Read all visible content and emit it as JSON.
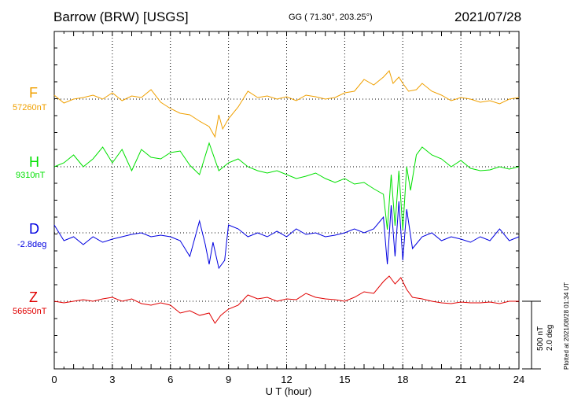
{
  "header": {
    "station": "Barrow (BRW)  [USGS]",
    "coords": "GG ( 71.30°, 203.25°)",
    "date": "2021/07/28"
  },
  "scale": {
    "field": "500 nT",
    "angle": "2.0 deg"
  },
  "plotted_note": "Plotted at 2021/08/28 01:34 UT",
  "chart_data": {
    "type": "line",
    "xlabel": "U T (hour)",
    "xlim": [
      0,
      24
    ],
    "xticks": [
      0,
      3,
      6,
      9,
      12,
      15,
      18,
      21,
      24
    ],
    "grid": true,
    "series": [
      {
        "name": "F",
        "baseline_label": "57260nT",
        "color": "#f0a000",
        "offset": 0,
        "points": [
          [
            0,
            5
          ],
          [
            0.5,
            -5
          ],
          [
            1,
            0
          ],
          [
            1.5,
            2
          ],
          [
            2,
            5
          ],
          [
            2.5,
            0
          ],
          [
            3,
            8
          ],
          [
            3.5,
            -2
          ],
          [
            4,
            4
          ],
          [
            4.5,
            2
          ],
          [
            5,
            12
          ],
          [
            5.5,
            -4
          ],
          [
            6,
            -12
          ],
          [
            6.5,
            -18
          ],
          [
            7,
            -20
          ],
          [
            7.5,
            -28
          ],
          [
            8,
            -35
          ],
          [
            8.3,
            -48
          ],
          [
            8.5,
            -20
          ],
          [
            8.7,
            -38
          ],
          [
            9,
            -25
          ],
          [
            9.5,
            -10
          ],
          [
            10,
            10
          ],
          [
            10.5,
            2
          ],
          [
            11,
            4
          ],
          [
            11.5,
            0
          ],
          [
            12,
            3
          ],
          [
            12.5,
            -2
          ],
          [
            13,
            5
          ],
          [
            13.5,
            3
          ],
          [
            14,
            0
          ],
          [
            14.5,
            2
          ],
          [
            15,
            8
          ],
          [
            15.5,
            10
          ],
          [
            16,
            25
          ],
          [
            16.5,
            18
          ],
          [
            17,
            28
          ],
          [
            17.3,
            36
          ],
          [
            17.5,
            20
          ],
          [
            17.8,
            28
          ],
          [
            18,
            20
          ],
          [
            18.3,
            10
          ],
          [
            18.7,
            12
          ],
          [
            19,
            20
          ],
          [
            19.5,
            10
          ],
          [
            20,
            5
          ],
          [
            20.5,
            -2
          ],
          [
            21,
            2
          ],
          [
            21.5,
            0
          ],
          [
            22,
            -4
          ],
          [
            22.5,
            -2
          ],
          [
            23,
            -6
          ],
          [
            23.5,
            0
          ],
          [
            24,
            2
          ]
        ]
      },
      {
        "name": "H",
        "baseline_label": "9310nT",
        "color": "#00e000",
        "offset": 0,
        "points": [
          [
            0,
            0
          ],
          [
            0.5,
            5
          ],
          [
            1,
            15
          ],
          [
            1.5,
            0
          ],
          [
            2,
            10
          ],
          [
            2.5,
            25
          ],
          [
            3,
            5
          ],
          [
            3.5,
            22
          ],
          [
            4,
            -5
          ],
          [
            4.5,
            22
          ],
          [
            5,
            12
          ],
          [
            5.5,
            10
          ],
          [
            6,
            18
          ],
          [
            6.5,
            20
          ],
          [
            7,
            2
          ],
          [
            7.5,
            -10
          ],
          [
            8,
            30
          ],
          [
            8.5,
            -5
          ],
          [
            9,
            5
          ],
          [
            9.5,
            10
          ],
          [
            10,
            0
          ],
          [
            10.5,
            -5
          ],
          [
            11,
            -8
          ],
          [
            11.5,
            -5
          ],
          [
            12,
            -10
          ],
          [
            12.5,
            -15
          ],
          [
            13,
            -12
          ],
          [
            13.5,
            -8
          ],
          [
            14,
            -15
          ],
          [
            14.5,
            -20
          ],
          [
            15,
            -15
          ],
          [
            15.5,
            -22
          ],
          [
            16,
            -20
          ],
          [
            16.5,
            -28
          ],
          [
            17,
            -35
          ],
          [
            17.2,
            -80
          ],
          [
            17.4,
            -10
          ],
          [
            17.6,
            -75
          ],
          [
            17.8,
            -5
          ],
          [
            18,
            -80
          ],
          [
            18.2,
            0
          ],
          [
            18.4,
            -30
          ],
          [
            18.7,
            15
          ],
          [
            19,
            25
          ],
          [
            19.5,
            15
          ],
          [
            20,
            10
          ],
          [
            20.5,
            0
          ],
          [
            21,
            8
          ],
          [
            21.5,
            -2
          ],
          [
            22,
            -5
          ],
          [
            22.5,
            -4
          ],
          [
            23,
            0
          ],
          [
            23.5,
            -3
          ],
          [
            24,
            0
          ]
        ]
      },
      {
        "name": "D",
        "baseline_label": "-2.8deg",
        "color": "#0000e0",
        "offset": 0,
        "points": [
          [
            0,
            10
          ],
          [
            0.5,
            -10
          ],
          [
            1,
            -5
          ],
          [
            1.5,
            -15
          ],
          [
            2,
            -5
          ],
          [
            2.5,
            -12
          ],
          [
            3,
            -8
          ],
          [
            3.5,
            -5
          ],
          [
            4,
            -2
          ],
          [
            4.5,
            0
          ],
          [
            5,
            -5
          ],
          [
            5.5,
            -3
          ],
          [
            6,
            -5
          ],
          [
            6.5,
            -10
          ],
          [
            7,
            -30
          ],
          [
            7.5,
            15
          ],
          [
            7.8,
            -15
          ],
          [
            8,
            -40
          ],
          [
            8.2,
            -12
          ],
          [
            8.5,
            -45
          ],
          [
            8.8,
            -35
          ],
          [
            9,
            10
          ],
          [
            9.5,
            5
          ],
          [
            10,
            -5
          ],
          [
            10.5,
            0
          ],
          [
            11,
            -5
          ],
          [
            11.5,
            2
          ],
          [
            12,
            -5
          ],
          [
            12.5,
            5
          ],
          [
            13,
            -2
          ],
          [
            13.5,
            0
          ],
          [
            14,
            -5
          ],
          [
            14.5,
            -3
          ],
          [
            15,
            0
          ],
          [
            15.5,
            5
          ],
          [
            16,
            0
          ],
          [
            16.5,
            5
          ],
          [
            17,
            20
          ],
          [
            17.2,
            -40
          ],
          [
            17.4,
            35
          ],
          [
            17.6,
            -30
          ],
          [
            17.8,
            40
          ],
          [
            18,
            -35
          ],
          [
            18.2,
            30
          ],
          [
            18.5,
            -20
          ],
          [
            19,
            -5
          ],
          [
            19.5,
            0
          ],
          [
            20,
            -10
          ],
          [
            20.5,
            -5
          ],
          [
            21,
            -8
          ],
          [
            21.5,
            -12
          ],
          [
            22,
            -5
          ],
          [
            22.5,
            -10
          ],
          [
            23,
            5
          ],
          [
            23.5,
            -10
          ],
          [
            24,
            -5
          ]
        ]
      },
      {
        "name": "Z",
        "baseline_label": "56650nT",
        "color": "#e00000",
        "offset": 0,
        "points": [
          [
            0,
            0
          ],
          [
            0.5,
            -2
          ],
          [
            1,
            0
          ],
          [
            1.5,
            2
          ],
          [
            2,
            0
          ],
          [
            2.5,
            3
          ],
          [
            3,
            5
          ],
          [
            3.5,
            0
          ],
          [
            4,
            3
          ],
          [
            4.5,
            -3
          ],
          [
            5,
            -5
          ],
          [
            5.5,
            -2
          ],
          [
            6,
            -5
          ],
          [
            6.5,
            -15
          ],
          [
            7,
            -12
          ],
          [
            7.5,
            -18
          ],
          [
            8,
            -15
          ],
          [
            8.3,
            -28
          ],
          [
            8.6,
            -18
          ],
          [
            9,
            -10
          ],
          [
            9.5,
            -5
          ],
          [
            10,
            8
          ],
          [
            10.5,
            3
          ],
          [
            11,
            5
          ],
          [
            11.5,
            0
          ],
          [
            12,
            3
          ],
          [
            12.5,
            2
          ],
          [
            13,
            10
          ],
          [
            13.5,
            5
          ],
          [
            14,
            3
          ],
          [
            14.5,
            2
          ],
          [
            15,
            0
          ],
          [
            15.5,
            5
          ],
          [
            16,
            12
          ],
          [
            16.5,
            10
          ],
          [
            17,
            25
          ],
          [
            17.3,
            32
          ],
          [
            17.6,
            22
          ],
          [
            17.9,
            30
          ],
          [
            18.2,
            15
          ],
          [
            18.5,
            5
          ],
          [
            19,
            3
          ],
          [
            19.5,
            0
          ],
          [
            20,
            -2
          ],
          [
            20.5,
            -3
          ],
          [
            21,
            -1
          ],
          [
            21.5,
            -2
          ],
          [
            22,
            -2
          ],
          [
            22.5,
            -1
          ],
          [
            23,
            -3
          ],
          [
            23.5,
            0
          ],
          [
            24,
            0
          ]
        ]
      }
    ]
  }
}
